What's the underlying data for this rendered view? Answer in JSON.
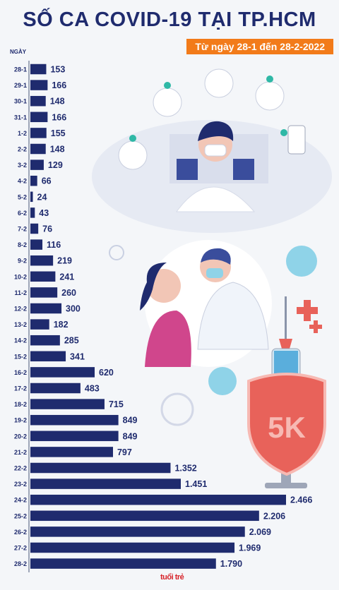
{
  "header": {
    "title": "SỐ CA COVID-19 TẠI TP.HCM",
    "subtitle": "Từ ngày 28-1 đến 28-2-2022",
    "axis_label": "NGÀY"
  },
  "logo_text": "tuổi trẻ",
  "colors": {
    "bar": "#1f2b6e",
    "label": "#1f2b6e",
    "accent": "#f27b1a",
    "shield": "#e8625a"
  },
  "illustration": {
    "shield_text": "5K"
  },
  "chart_data": {
    "type": "bar",
    "orientation": "horizontal",
    "title": "SỐ CA COVID-19 TẠI TP.HCM",
    "subtitle": "Từ ngày 28-1 đến 28-2-2022",
    "xlabel": "",
    "ylabel": "NGÀY",
    "categories": [
      "28-1",
      "29-1",
      "30-1",
      "31-1",
      "1-2",
      "2-2",
      "3-2",
      "4-2",
      "5-2",
      "6-2",
      "7-2",
      "8-2",
      "9-2",
      "10-2",
      "11-2",
      "12-2",
      "13-2",
      "14-2",
      "15-2",
      "16-2",
      "17-2",
      "18-2",
      "19-2",
      "20-2",
      "21-2",
      "22-2",
      "23-2",
      "24-2",
      "25-2",
      "26-2",
      "27-2",
      "28-2"
    ],
    "values": [
      153,
      166,
      148,
      166,
      155,
      148,
      129,
      66,
      24,
      43,
      76,
      116,
      219,
      241,
      260,
      300,
      182,
      285,
      341,
      620,
      483,
      715,
      849,
      849,
      797,
      1352,
      1451,
      2466,
      2206,
      2069,
      1969,
      1790
    ],
    "value_labels": [
      "153",
      "166",
      "148",
      "166",
      "155",
      "148",
      "129",
      "66",
      "24",
      "43",
      "76",
      "116",
      "219",
      "241",
      "260",
      "300",
      "182",
      "285",
      "341",
      "620",
      "483",
      "715",
      "849",
      "849",
      "797",
      "1.352",
      "1.451",
      "2.466",
      "2.206",
      "2.069",
      "1.969",
      "1.790"
    ],
    "xlim": [
      0,
      2466
    ],
    "grid": false,
    "legend": "none"
  }
}
